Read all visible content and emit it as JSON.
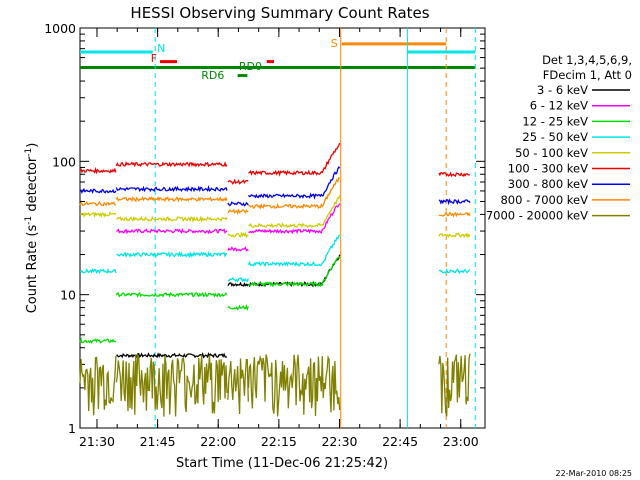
{
  "chart_data": {
    "type": "line",
    "title": "HESSI Observing Summary Count Rates",
    "xlabel": "Start Time (11-Dec-06 21:25:42)",
    "ylabel_prefix": "Count Rate (s",
    "ylabel_sup1": "-1",
    "ylabel_mid": " detector",
    "ylabel_sup2": "-1",
    "ylabel_suffix": ")",
    "yscale": "log",
    "xlim_min": [
      21.43,
      23.1
    ],
    "ylim": [
      1,
      1000
    ],
    "x_ticks": [
      {
        "label": "21:30",
        "value": 21.5
      },
      {
        "label": "21:45",
        "value": 21.75
      },
      {
        "label": "22:00",
        "value": 22.0
      },
      {
        "label": "22:15",
        "value": 22.25
      },
      {
        "label": "22:30",
        "value": 22.5
      },
      {
        "label": "22:45",
        "value": 22.75
      },
      {
        "label": "23:00",
        "value": 23.0
      }
    ],
    "y_ticks": [
      {
        "label": "1",
        "value": 1
      },
      {
        "label": "10",
        "value": 10
      },
      {
        "label": "100",
        "value": 100
      },
      {
        "label": "1000",
        "value": 1000
      }
    ],
    "legend": {
      "header1": "Det 1,3,4,5,6,9,",
      "header2": "FDecim 1, Att 0",
      "placement": "right"
    },
    "series": [
      {
        "name": "3 - 6 keV",
        "color": "#000000"
      },
      {
        "name": "6 - 12 keV",
        "color": "#ff00ff"
      },
      {
        "name": "12 - 25 keV",
        "color": "#00dd00"
      },
      {
        "name": "25 - 50 keV",
        "color": "#00e5e5"
      },
      {
        "name": "50 - 100 keV",
        "color": "#cccc00"
      },
      {
        "name": "100 - 300 keV",
        "color": "#ee0000"
      },
      {
        "name": "300 - 800 keV",
        "color": "#0000ee"
      },
      {
        "name": "800 - 7000 keV",
        "color": "#ff8800"
      },
      {
        "name": "7000 - 20000 keV",
        "color": "#808000"
      }
    ],
    "flags": [
      {
        "label": "N",
        "color": "#00e5e5"
      },
      {
        "label": "F",
        "color": "#ee0000"
      },
      {
        "label": "S",
        "color": "#ff8800"
      },
      {
        "label": "RD0",
        "color": "#008800"
      },
      {
        "label": "RD6",
        "color": "#008800"
      }
    ],
    "footer_date": "22-Mar-2010 08:25"
  }
}
